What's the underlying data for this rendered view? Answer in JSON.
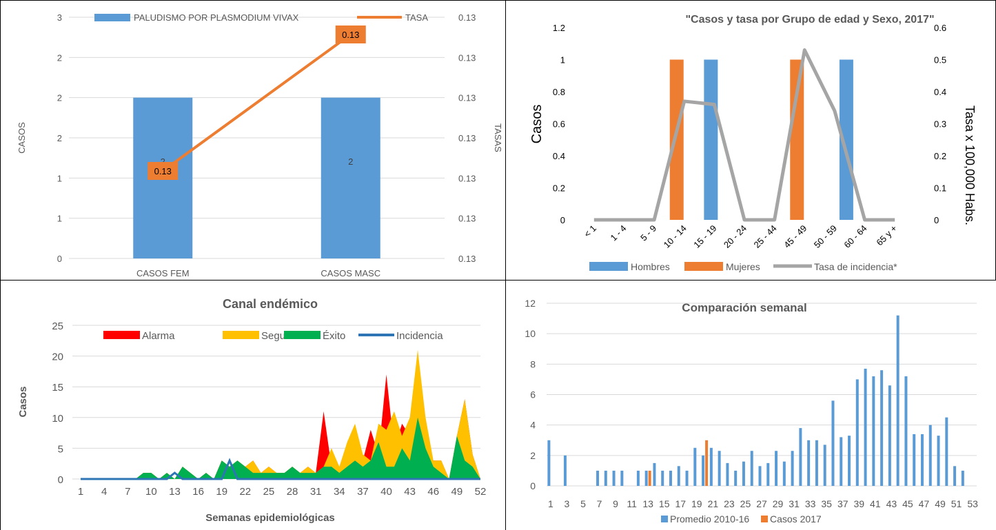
{
  "chart_data": [
    {
      "type": "bar",
      "title": "",
      "categories": [
        "CASOS FEM",
        "CASOS MASC"
      ],
      "series": [
        {
          "name": "PALUDISMO POR PLASMODIUM VIVAX",
          "type": "bar",
          "axis": "left",
          "values": [
            2,
            2
          ],
          "data_labels": [
            "2",
            "2"
          ],
          "color": "#5B9BD5"
        },
        {
          "name": "TASA",
          "type": "line",
          "axis": "right",
          "values": [
            0.13,
            0.13
          ],
          "data_labels": [
            "0.13",
            "0.13"
          ],
          "color": "#ED7D31"
        }
      ],
      "xlabel": "",
      "ylabel": "CASOS",
      "y2label": "TASAS",
      "ylim": [
        0,
        3
      ],
      "yticks": [
        "0",
        "1",
        "1",
        "2",
        "2",
        "2",
        "3"
      ],
      "y2ticks": [
        "0.13",
        "0.13",
        "0.13",
        "0.13",
        "0.13",
        "0.13",
        "0.13"
      ],
      "legend": "top",
      "grid": true
    },
    {
      "type": "bar",
      "title": "\"Casos y tasa por Grupo de edad y Sexo, 2017\"",
      "categories": [
        "< 1",
        "1 - 4",
        "5 - 9",
        "10 - 14",
        "15 - 19",
        "20 - 24",
        "25 - 44",
        "45 - 49",
        "50 - 59",
        "60 - 64",
        "65 y +"
      ],
      "series": [
        {
          "name": "Hombres",
          "type": "bar",
          "axis": "left",
          "values": [
            0,
            0,
            0,
            0,
            1,
            0,
            0,
            0,
            1,
            0,
            0
          ],
          "color": "#5B9BD5"
        },
        {
          "name": "Mujeres",
          "type": "bar",
          "axis": "left",
          "values": [
            0,
            0,
            0,
            1,
            0,
            0,
            0,
            1,
            0,
            0,
            0
          ],
          "color": "#ED7D31"
        },
        {
          "name": "Tasa de incidencia*",
          "type": "line",
          "axis": "right",
          "values": [
            0,
            0,
            0,
            0.37,
            0.36,
            0,
            0,
            0.53,
            0.34,
            0,
            0
          ],
          "color": "#A5A5A5"
        }
      ],
      "xlabel": "",
      "ylabel": "Casos",
      "y2label": "Tasa x 100,000 Habs.",
      "ylim": [
        0,
        1.2
      ],
      "y2lim": [
        0,
        0.6
      ],
      "yticks": [
        "0",
        "0.2",
        "0.4",
        "0.6",
        "0.8",
        "1",
        "1.2"
      ],
      "y2ticks": [
        "0",
        "0.1",
        "0.2",
        "0.3",
        "0.4",
        "0.5",
        "0.6"
      ],
      "legend": "bottom",
      "grid": false
    },
    {
      "type": "area",
      "title": "Canal endémico",
      "xlabel": "Semanas epidemiológicas",
      "ylabel": "Casos",
      "x": [
        1,
        2,
        3,
        4,
        5,
        6,
        7,
        8,
        9,
        10,
        11,
        12,
        13,
        14,
        15,
        16,
        17,
        18,
        19,
        20,
        21,
        22,
        23,
        24,
        25,
        26,
        27,
        28,
        29,
        30,
        31,
        32,
        33,
        34,
        35,
        36,
        37,
        38,
        39,
        40,
        41,
        42,
        43,
        44,
        45,
        46,
        47,
        48,
        49,
        50,
        51,
        52
      ],
      "xticks": [
        "1",
        "4",
        "7",
        "10",
        "13",
        "16",
        "19",
        "22",
        "25",
        "28",
        "31",
        "34",
        "37",
        "40",
        "43",
        "46",
        "49",
        "52"
      ],
      "ylim": [
        0,
        25
      ],
      "yticks": [
        "0",
        "5",
        "10",
        "15",
        "20",
        "25"
      ],
      "series": [
        {
          "name": "Alarma",
          "type": "area",
          "color": "#FF0000",
          "values": [
            0,
            0,
            0,
            0,
            0,
            0,
            0,
            0,
            1,
            1,
            0,
            1,
            0,
            2,
            1,
            0,
            1,
            0,
            3,
            2,
            3,
            2,
            3,
            1,
            2,
            1,
            1,
            2,
            1,
            2,
            1,
            11,
            2,
            1,
            4,
            7,
            3,
            8,
            4,
            17,
            5,
            9,
            7,
            12,
            6,
            3,
            3,
            0,
            7,
            13,
            4,
            0
          ]
        },
        {
          "name": "Seguridad",
          "type": "area",
          "color": "#FFC000",
          "values": [
            0,
            0,
            0,
            0,
            0,
            0,
            0,
            0,
            1,
            1,
            0,
            1,
            0,
            2,
            1,
            0,
            1,
            0,
            3,
            2,
            3,
            2,
            3,
            1,
            2,
            1,
            1,
            2,
            1,
            2,
            1,
            2,
            5,
            2,
            6,
            9,
            4,
            3,
            9,
            8,
            11,
            7,
            10,
            21,
            10,
            3,
            3,
            0,
            7,
            13,
            4,
            0
          ]
        },
        {
          "name": "Éxito",
          "type": "area",
          "color": "#00B050",
          "values": [
            0,
            0,
            0,
            0,
            0,
            0,
            0,
            0,
            1,
            1,
            0,
            1,
            0,
            2,
            1,
            0,
            1,
            0,
            3,
            2,
            3,
            2,
            1,
            1,
            1,
            1,
            1,
            2,
            1,
            1,
            1,
            2,
            2,
            1,
            2,
            3,
            2,
            3,
            6,
            2,
            2,
            5,
            3,
            10,
            5,
            2,
            1,
            0,
            7,
            3,
            2,
            0
          ]
        },
        {
          "name": "Incidencia",
          "type": "line",
          "color": "#2E75B6",
          "values": [
            0,
            0,
            0,
            0,
            0,
            0,
            0,
            0,
            0,
            0,
            0,
            0,
            1,
            0,
            0,
            0,
            0,
            0,
            0,
            3,
            0,
            0,
            0,
            0,
            0,
            0,
            0,
            0,
            0,
            0,
            0,
            0,
            0,
            0,
            0,
            0,
            0,
            0,
            0,
            0,
            0,
            0,
            0,
            0,
            0,
            0,
            0,
            0,
            0,
            0,
            0,
            0
          ]
        }
      ],
      "legend": "top",
      "grid": true
    },
    {
      "type": "bar",
      "title": "Comparación semanal",
      "x": [
        1,
        2,
        3,
        4,
        5,
        6,
        7,
        8,
        9,
        10,
        11,
        12,
        13,
        14,
        15,
        16,
        17,
        18,
        19,
        20,
        21,
        22,
        23,
        24,
        25,
        26,
        27,
        28,
        29,
        30,
        31,
        32,
        33,
        34,
        35,
        36,
        37,
        38,
        39,
        40,
        41,
        42,
        43,
        44,
        45,
        46,
        47,
        48,
        49,
        50,
        51,
        52,
        53
      ],
      "xticks": [
        "1",
        "3",
        "5",
        "7",
        "9",
        "11",
        "13",
        "15",
        "17",
        "19",
        "21",
        "23",
        "25",
        "27",
        "29",
        "31",
        "33",
        "35",
        "37",
        "39",
        "41",
        "43",
        "45",
        "47",
        "49",
        "51",
        "53"
      ],
      "ylim": [
        0,
        12
      ],
      "yticks": [
        "0",
        "2",
        "4",
        "6",
        "8",
        "10",
        "12"
      ],
      "series": [
        {
          "name": "Promedio 2010-16",
          "color": "#5B9BD5",
          "values": [
            3,
            0,
            2,
            0,
            0,
            0,
            1,
            1,
            1,
            1,
            0,
            1,
            1,
            1.5,
            1,
            1,
            1.3,
            1,
            2.5,
            2,
            2.5,
            2.3,
            1.5,
            1,
            1.6,
            2.3,
            1.3,
            1.5,
            2.3,
            1.6,
            2.3,
            3.8,
            3,
            3,
            2.7,
            5.6,
            3.2,
            3.3,
            7,
            7.7,
            7.2,
            7.6,
            6.6,
            11.2,
            7.2,
            3.4,
            3.4,
            4,
            3.3,
            4.5,
            1.3,
            1,
            0
          ]
        },
        {
          "name": "Casos 2017",
          "color": "#ED7D31",
          "values": [
            0,
            0,
            0,
            0,
            0,
            0,
            0,
            0,
            0,
            0,
            0,
            0,
            1,
            0,
            0,
            0,
            0,
            0,
            0,
            3,
            0,
            0,
            0,
            0,
            0,
            0,
            0,
            0,
            0,
            0,
            0,
            0,
            0,
            0,
            0,
            0,
            0,
            0,
            0,
            0,
            0,
            0,
            0,
            0,
            0,
            0,
            0,
            0,
            0,
            0,
            0,
            0,
            0
          ]
        }
      ],
      "legend": "bottom",
      "grid": true
    }
  ]
}
